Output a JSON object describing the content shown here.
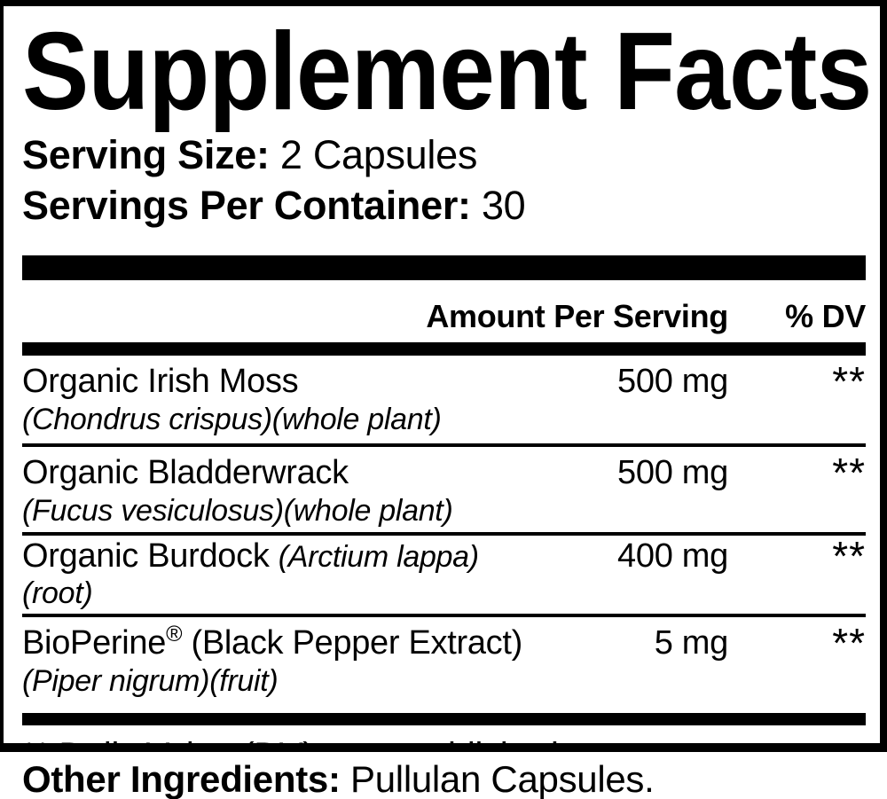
{
  "colors": {
    "ink": "#000000",
    "background": "#ffffff"
  },
  "label": {
    "title": "Supplement Facts",
    "serving": {
      "size_label": "Serving Size:",
      "size_value": " 2 Capsules",
      "per_container_label": "Servings Per Container:",
      "per_container_value": " 30"
    },
    "columns": {
      "amount": "Amount Per Serving",
      "dv": "% DV"
    },
    "rows": [
      {
        "name": "Organic Irish Moss",
        "sub": "(Chondrus crispus)(whole plant)",
        "amount": "500 mg",
        "dv": "**"
      },
      {
        "name": "Organic Bladderwrack",
        "sub": "(Fucus vesiculosus)(whole plant)",
        "amount": "500 mg",
        "dv": "**"
      },
      {
        "name": "Organic Burdock ",
        "name_italic": "(Arctium lappa)(root)",
        "amount": "400 mg",
        "dv": "**"
      },
      {
        "name": "BioPerine",
        "trademark": "®",
        "name_suffix": " (Black Pepper Extract)",
        "sub": "(Piper nigrum)(fruit)",
        "amount": "5 mg",
        "dv": "**"
      }
    ],
    "footnote": "** Daily Value (DV) not established",
    "other_ingredients": {
      "label": "Other Ingredients:",
      "value": " Pullulan Capsules."
    }
  }
}
